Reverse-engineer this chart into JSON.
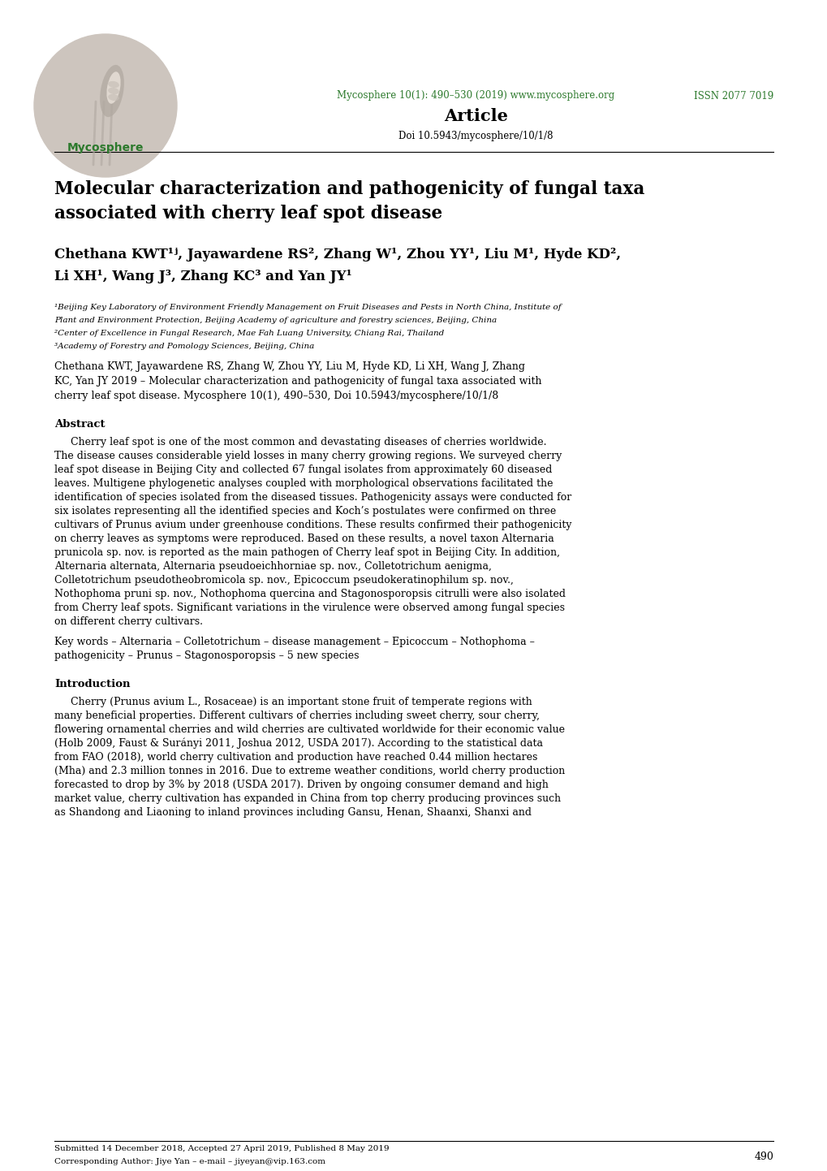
{
  "fig_width": 10.2,
  "fig_height": 14.42,
  "dpi": 100,
  "bg_color": "#ffffff",
  "green_color": "#2d7a2d",
  "black": "#000000",
  "header": {
    "journal_line": "Mycosphere 10(1): 490–530 (2019) www.mycosphere.org",
    "issn_line": "ISSN 2077 7019",
    "article_line": "Article",
    "doi_line": "Doi 10.5943/mycosphere/10/1/8"
  },
  "title_line1": "Molecular characterization and pathogenicity of fungal taxa",
  "title_line2": "associated with cherry leaf spot disease",
  "author_line1": "Chethana KWT¹ʲ, Jayawardene RS², Zhang W¹, Zhou YY¹, Liu M¹, Hyde KD²,",
  "author_line2": "Li XH¹, Wang J³, Zhang KC³ and Yan JY¹",
  "aff1": "¹Beijing Key Laboratory of Environment Friendly Management on Fruit Diseases and Pests in North China, Institute of",
  "aff1b": "Plant and Environment Protection, Beijing Academy of agriculture and forestry sciences, Beijing, China",
  "aff2": "²Center of Excellence in Fungal Research, Mae Fah Luang University, Chiang Rai, Thailand",
  "aff3": "³Academy of Forestry and Pomology Sciences, Beijing, China",
  "cite_lines": [
    "Chethana KWT, Jayawardene RS, Zhang W, Zhou YY, Liu M, Hyde KD, Li XH, Wang J, Zhang",
    "KC, Yan JY 2019 – Molecular characterization and pathogenicity of fungal taxa associated with",
    "cherry leaf spot disease. Mycosphere 10(1), 490–530, Doi 10.5943/mycosphere/10/1/8"
  ],
  "abs_title": "Abstract",
  "abs_lines": [
    "     Cherry leaf spot is one of the most common and devastating diseases of cherries worldwide.",
    "The disease causes considerable yield losses in many cherry growing regions. We surveyed cherry",
    "leaf spot disease in Beijing City and collected 67 fungal isolates from approximately 60 diseased",
    "leaves. Multigene phylogenetic analyses coupled with morphological observations facilitated the",
    "identification of species isolated from the diseased tissues. Pathogenicity assays were conducted for",
    "six isolates representing all the identified species and Koch’s postulates were confirmed on three",
    "cultivars of Prunus avium under greenhouse conditions. These results confirmed their pathogenicity",
    "on cherry leaves as symptoms were reproduced. Based on these results, a novel taxon Alternaria",
    "prunicola sp. nov. is reported as the main pathogen of Cherry leaf spot in Beijing City. In addition,",
    "Alternaria alternata, Alternaria pseudoeichhorniae sp. nov., Colletotrichum aenigma,",
    "Colletotrichum pseudotheobromicola sp. nov., Epicoccum pseudokeratinophilum sp. nov.,",
    "Nothophoma pruni sp. nov., Nothophoma quercina and Stagonosporopsis citrulli were also isolated",
    "from Cherry leaf spots. Significant variations in the virulence were observed among fungal species",
    "on different cherry cultivars."
  ],
  "kw_lines": [
    "Key words – Alternaria – Colletotrichum – disease management – Epicoccum – Nothophoma –",
    "pathogenicity – Prunus – Stagonosporopsis – 5 new species"
  ],
  "intro_title": "Introduction",
  "intro_lines": [
    "     Cherry (Prunus avium L., Rosaceae) is an important stone fruit of temperate regions with",
    "many beneficial properties. Different cultivars of cherries including sweet cherry, sour cherry,",
    "flowering ornamental cherries and wild cherries are cultivated worldwide for their economic value",
    "(Holb 2009, Faust & Surányi 2011, Joshua 2012, USDA 2017). According to the statistical data",
    "from FAO (2018), world cherry cultivation and production have reached 0.44 million hectares",
    "(Mha) and 2.3 million tonnes in 2016. Due to extreme weather conditions, world cherry production",
    "forecasted to drop by 3% by 2018 (USDA 2017). Driven by ongoing consumer demand and high",
    "market value, cherry cultivation has expanded in China from top cherry producing provinces such",
    "as Shandong and Liaoning to inland provinces including Gansu, Henan, Shaanxi, Shanxi and"
  ],
  "footer_line1": "Submitted 14 December 2018, Accepted 27 April 2019, Published 8 May 2019",
  "footer_line2": "Corresponding Author: Jiye Yan – e-mail – jiyeyan@vip.163.com",
  "footer_page": "490",
  "logo_bg": "#cdc5be",
  "logo_inner": "#e8e2dc",
  "logo_text": "Mycosphere"
}
